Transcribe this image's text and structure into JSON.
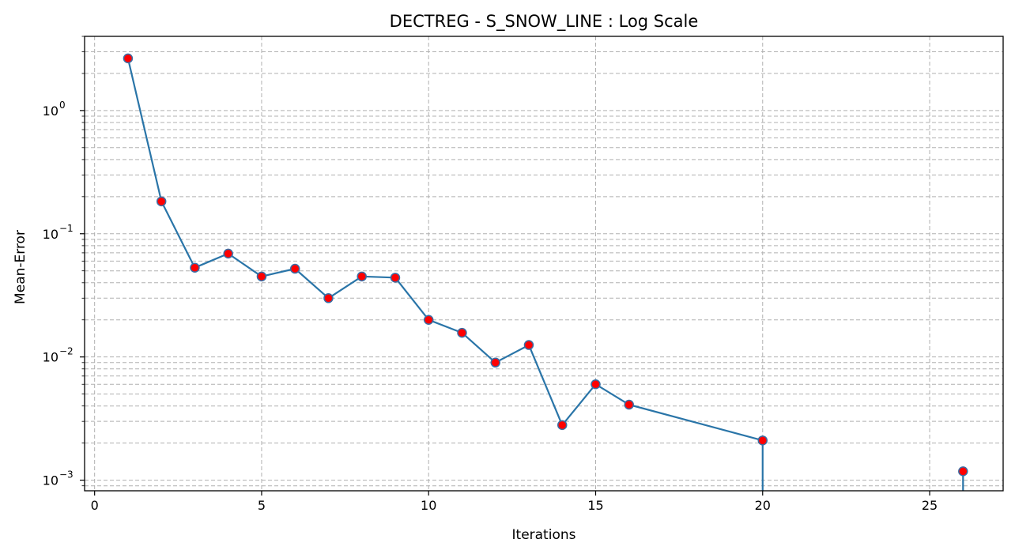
{
  "chart_data": {
    "type": "line",
    "title": "DECTREG - S_SNOW_LINE : Log Scale",
    "xlabel": "Iterations",
    "ylabel": "Mean-Error",
    "xlim": [
      -0.3,
      27.2
    ],
    "ylim": [
      0.00082,
      4.0
    ],
    "yscale": "log",
    "grid": true,
    "x_ticks": [
      0,
      5,
      10,
      15,
      20,
      25
    ],
    "y_ticks": [
      {
        "base": "10",
        "exp": "0",
        "value": 1
      },
      {
        "base": "10",
        "exp": "−1",
        "value": 0.1
      },
      {
        "base": "10",
        "exp": "−2",
        "value": 0.01
      },
      {
        "base": "10",
        "exp": "−3",
        "value": 0.001
      }
    ],
    "series": [
      {
        "x": [
          1,
          2,
          3,
          4,
          5,
          6,
          7,
          8,
          9,
          10,
          11,
          12,
          13,
          14,
          15,
          16,
          20,
          26
        ],
        "y": [
          2.65,
          0.183,
          0.053,
          0.069,
          0.045,
          0.052,
          0.03,
          0.045,
          0.044,
          0.02,
          0.0157,
          0.009,
          0.0125,
          0.0028,
          0.006,
          0.0041,
          0.0021,
          0.00118
        ]
      }
    ],
    "drop_lines_x": [
      20,
      26
    ],
    "colors": {
      "line": "#2a75a8",
      "marker_fill": "#ff0000",
      "marker_edge": "#3a6ea5",
      "grid": "#b0b0b0"
    }
  }
}
